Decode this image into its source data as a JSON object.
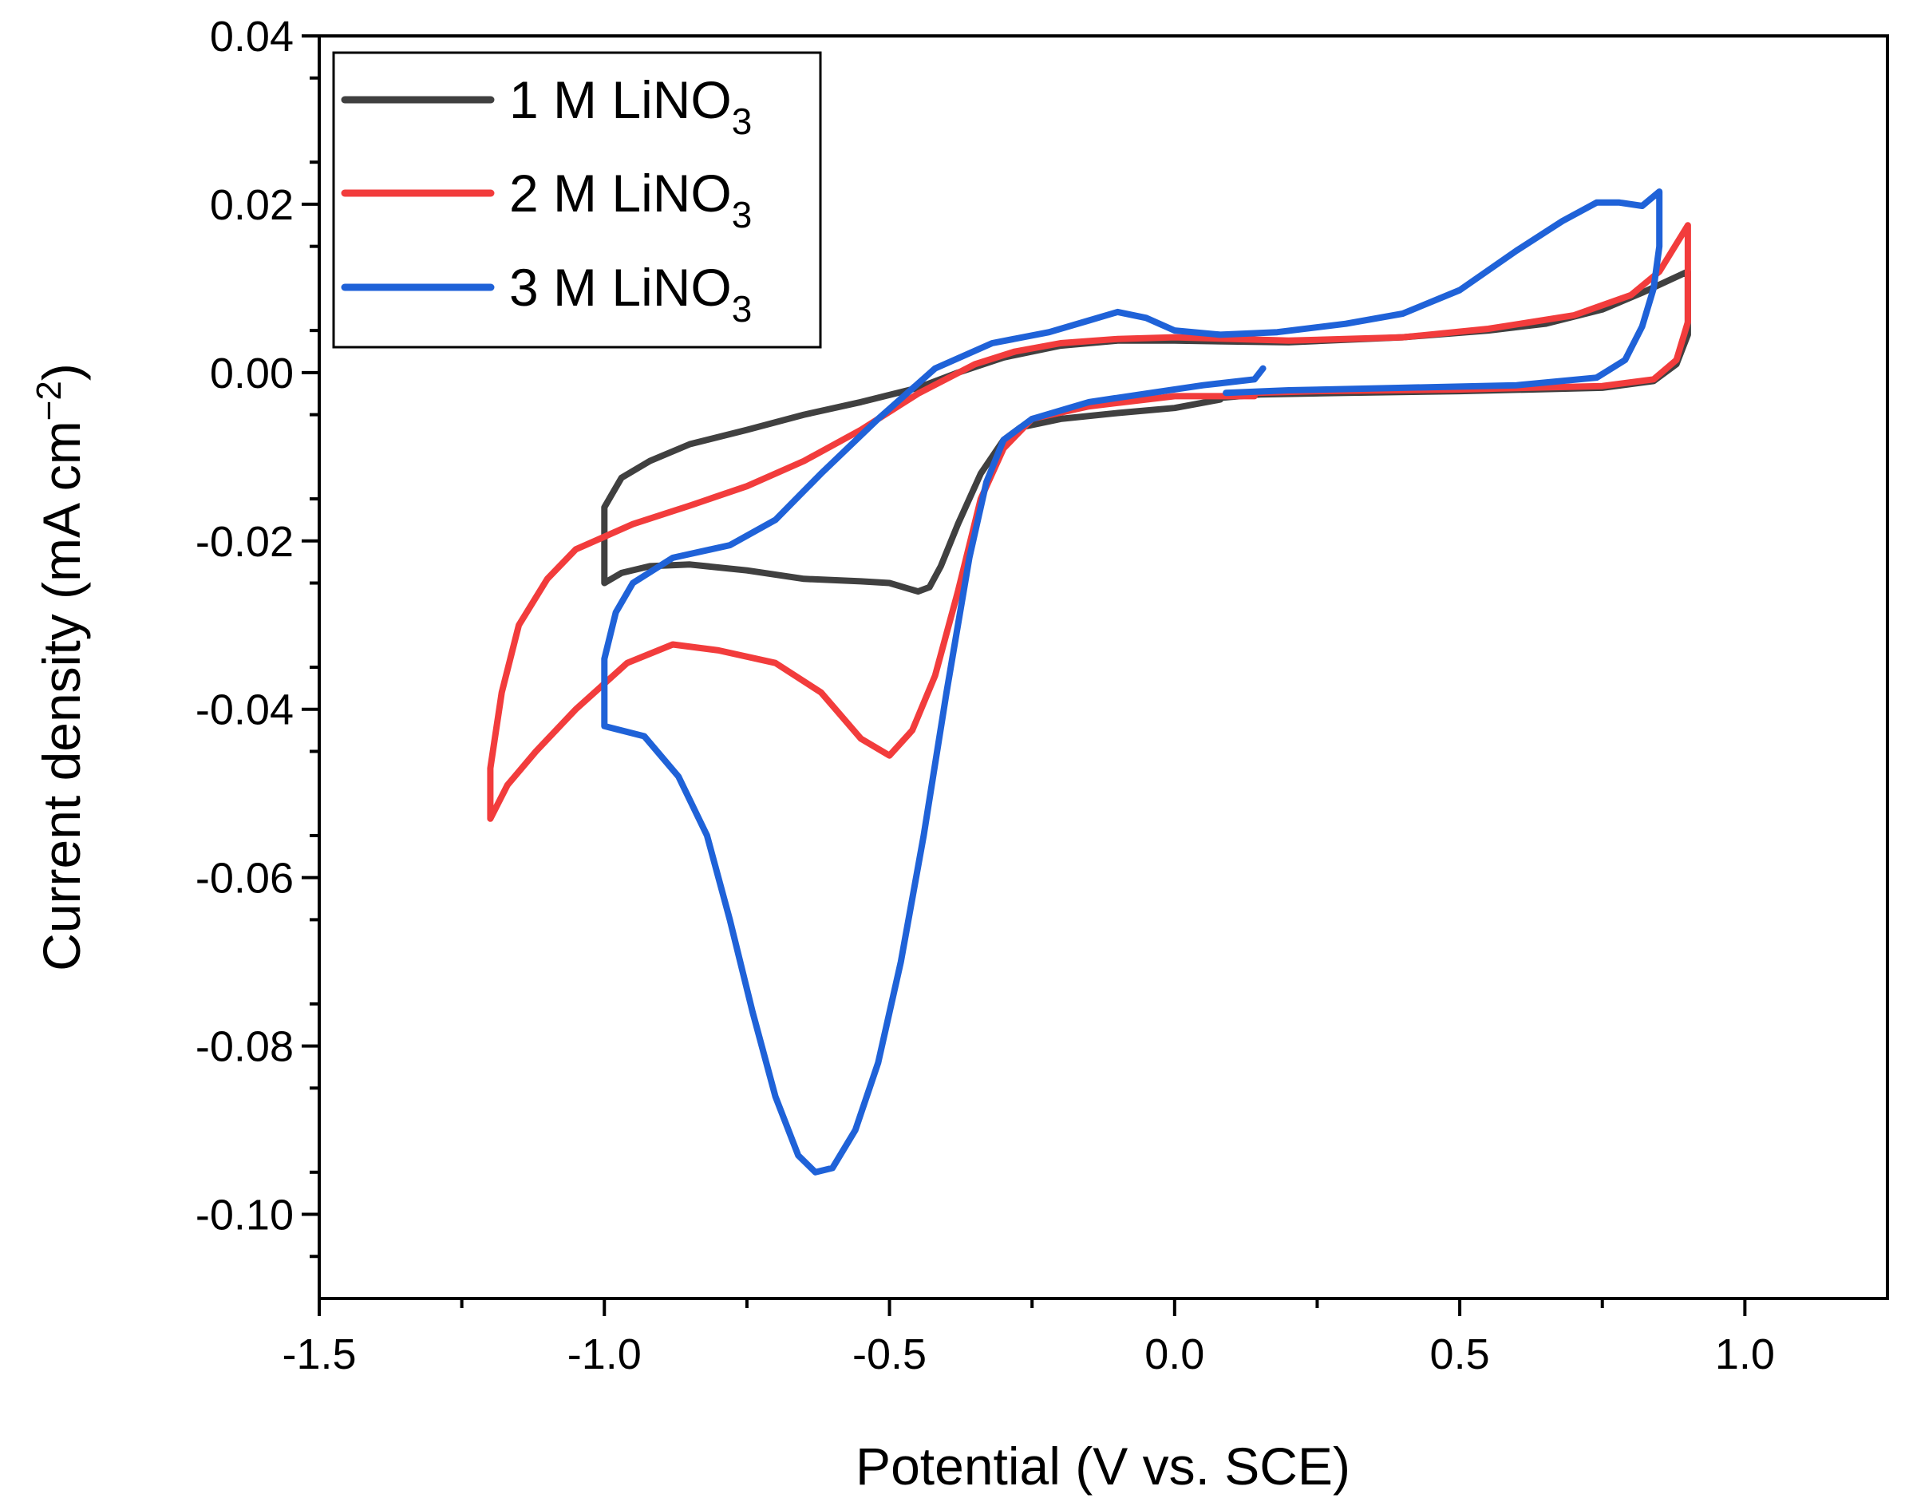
{
  "chart_data": {
    "type": "line",
    "title": "",
    "xlabel": "Potential (V vs. SCE)",
    "ylabel": {
      "prefix": "Current density (mA cm",
      "sup": "−2",
      "suffix": ")"
    },
    "xlim": [
      -1.5,
      1.25
    ],
    "ylim": [
      -0.11,
      0.04
    ],
    "x_ticks": [
      -1.5,
      -1.0,
      -0.5,
      0.0,
      0.5,
      1.0
    ],
    "x_tick_labels": [
      "-1.5",
      "-1.0",
      "-0.5",
      "0.0",
      "0.5",
      "1.0"
    ],
    "y_ticks": [
      0.04,
      0.02,
      0.0,
      -0.02,
      -0.04,
      -0.06,
      -0.08,
      -0.1
    ],
    "y_tick_labels": [
      "0.04",
      "0.02",
      "0.00",
      "-0.02",
      "-0.04",
      "-0.06",
      "-0.08",
      "-0.10"
    ],
    "grid": false,
    "legend_position": "top-left",
    "series": [
      {
        "name": "1 M LiNO3",
        "label_main": "1 M LiNO",
        "label_sub": "3",
        "color": "#404040",
        "points": [
          [
            0.08,
            -0.0032
          ],
          [
            0.0,
            -0.0042
          ],
          [
            -0.1,
            -0.0048
          ],
          [
            -0.2,
            -0.0055
          ],
          [
            -0.27,
            -0.0065
          ],
          [
            -0.3,
            -0.008
          ],
          [
            -0.34,
            -0.012
          ],
          [
            -0.38,
            -0.018
          ],
          [
            -0.41,
            -0.023
          ],
          [
            -0.43,
            -0.0255
          ],
          [
            -0.45,
            -0.026
          ],
          [
            -0.5,
            -0.025
          ],
          [
            -0.55,
            -0.0248
          ],
          [
            -0.65,
            -0.0245
          ],
          [
            -0.75,
            -0.0235
          ],
          [
            -0.85,
            -0.0228
          ],
          [
            -0.92,
            -0.023
          ],
          [
            -0.97,
            -0.0238
          ],
          [
            -1.0,
            -0.025
          ],
          [
            -1.0,
            -0.016
          ],
          [
            -0.97,
            -0.0125
          ],
          [
            -0.92,
            -0.0105
          ],
          [
            -0.85,
            -0.0085
          ],
          [
            -0.75,
            -0.0068
          ],
          [
            -0.65,
            -0.005
          ],
          [
            -0.55,
            -0.0035
          ],
          [
            -0.45,
            -0.0018
          ],
          [
            -0.38,
            0.0
          ],
          [
            -0.3,
            0.0018
          ],
          [
            -0.2,
            0.0032
          ],
          [
            -0.1,
            0.0038
          ],
          [
            0.0,
            0.0038
          ],
          [
            0.2,
            0.0036
          ],
          [
            0.4,
            0.0042
          ],
          [
            0.55,
            0.005
          ],
          [
            0.65,
            0.0058
          ],
          [
            0.75,
            0.0075
          ],
          [
            0.82,
            0.0095
          ],
          [
            0.9,
            0.012
          ],
          [
            0.9,
            0.0045
          ],
          [
            0.88,
            0.001
          ],
          [
            0.84,
            -0.001
          ],
          [
            0.75,
            -0.0018
          ],
          [
            0.5,
            -0.0022
          ],
          [
            0.3,
            -0.0024
          ],
          [
            0.15,
            -0.0026
          ],
          [
            0.08,
            -0.003
          ]
        ]
      },
      {
        "name": "2 M LiNO3",
        "label_main": "2 M LiNO",
        "label_sub": "3",
        "color": "#f23c3c",
        "points": [
          [
            0.14,
            -0.0028
          ],
          [
            0.0,
            -0.0028
          ],
          [
            -0.15,
            -0.004
          ],
          [
            -0.25,
            -0.0055
          ],
          [
            -0.3,
            -0.009
          ],
          [
            -0.34,
            -0.015
          ],
          [
            -0.38,
            -0.026
          ],
          [
            -0.42,
            -0.036
          ],
          [
            -0.46,
            -0.0425
          ],
          [
            -0.5,
            -0.0455
          ],
          [
            -0.55,
            -0.0435
          ],
          [
            -0.62,
            -0.038
          ],
          [
            -0.7,
            -0.0345
          ],
          [
            -0.8,
            -0.033
          ],
          [
            -0.88,
            -0.0323
          ],
          [
            -0.96,
            -0.0345
          ],
          [
            -1.05,
            -0.04
          ],
          [
            -1.12,
            -0.045
          ],
          [
            -1.17,
            -0.049
          ],
          [
            -1.2,
            -0.053
          ],
          [
            -1.2,
            -0.047
          ],
          [
            -1.18,
            -0.038
          ],
          [
            -1.15,
            -0.03
          ],
          [
            -1.1,
            -0.0245
          ],
          [
            -1.05,
            -0.021
          ],
          [
            -0.95,
            -0.018
          ],
          [
            -0.85,
            -0.0158
          ],
          [
            -0.75,
            -0.0135
          ],
          [
            -0.65,
            -0.0105
          ],
          [
            -0.55,
            -0.0068
          ],
          [
            -0.45,
            -0.0025
          ],
          [
            -0.35,
            0.001
          ],
          [
            -0.28,
            0.0025
          ],
          [
            -0.2,
            0.0035
          ],
          [
            -0.1,
            0.004
          ],
          [
            0.0,
            0.0042
          ],
          [
            0.2,
            0.0038
          ],
          [
            0.4,
            0.0042
          ],
          [
            0.55,
            0.0052
          ],
          [
            0.7,
            0.0068
          ],
          [
            0.8,
            0.0092
          ],
          [
            0.85,
            0.012
          ],
          [
            0.9,
            0.0175
          ],
          [
            0.9,
            0.006
          ],
          [
            0.88,
            0.0015
          ],
          [
            0.84,
            -0.0008
          ],
          [
            0.75,
            -0.0016
          ],
          [
            0.5,
            -0.002
          ],
          [
            0.25,
            -0.0022
          ],
          [
            0.14,
            -0.0024
          ]
        ]
      },
      {
        "name": "3 M LiNO3",
        "label_main": "3 M LiNO",
        "label_sub": "3",
        "color": "#1f62d8",
        "points": [
          [
            0.155,
            0.0005
          ],
          [
            0.14,
            -0.0008
          ],
          [
            0.05,
            -0.0015
          ],
          [
            -0.05,
            -0.0025
          ],
          [
            -0.15,
            -0.0035
          ],
          [
            -0.25,
            -0.0055
          ],
          [
            -0.3,
            -0.008
          ],
          [
            -0.33,
            -0.013
          ],
          [
            -0.36,
            -0.022
          ],
          [
            -0.4,
            -0.038
          ],
          [
            -0.44,
            -0.055
          ],
          [
            -0.48,
            -0.07
          ],
          [
            -0.52,
            -0.082
          ],
          [
            -0.56,
            -0.09
          ],
          [
            -0.6,
            -0.0945
          ],
          [
            -0.63,
            -0.095
          ],
          [
            -0.66,
            -0.093
          ],
          [
            -0.7,
            -0.086
          ],
          [
            -0.74,
            -0.076
          ],
          [
            -0.78,
            -0.065
          ],
          [
            -0.82,
            -0.055
          ],
          [
            -0.87,
            -0.048
          ],
          [
            -0.93,
            -0.0432
          ],
          [
            -1.0,
            -0.042
          ],
          [
            -1.0,
            -0.034
          ],
          [
            -0.98,
            -0.0285
          ],
          [
            -0.95,
            -0.025
          ],
          [
            -0.88,
            -0.022
          ],
          [
            -0.78,
            -0.0205
          ],
          [
            -0.7,
            -0.0175
          ],
          [
            -0.62,
            -0.012
          ],
          [
            -0.52,
            -0.0055
          ],
          [
            -0.42,
            0.0005
          ],
          [
            -0.32,
            0.0035
          ],
          [
            -0.22,
            0.0048
          ],
          [
            -0.15,
            0.0062
          ],
          [
            -0.1,
            0.0072
          ],
          [
            -0.05,
            0.0065
          ],
          [
            0.0,
            0.005
          ],
          [
            0.08,
            0.0045
          ],
          [
            0.18,
            0.0048
          ],
          [
            0.3,
            0.0058
          ],
          [
            0.4,
            0.007
          ],
          [
            0.5,
            0.0098
          ],
          [
            0.6,
            0.0145
          ],
          [
            0.68,
            0.018
          ],
          [
            0.74,
            0.0202
          ],
          [
            0.78,
            0.0202
          ],
          [
            0.82,
            0.0198
          ],
          [
            0.85,
            0.0215
          ],
          [
            0.85,
            0.015
          ],
          [
            0.84,
            0.01
          ],
          [
            0.82,
            0.0055
          ],
          [
            0.79,
            0.0015
          ],
          [
            0.74,
            -0.0006
          ],
          [
            0.6,
            -0.0015
          ],
          [
            0.4,
            -0.0018
          ],
          [
            0.2,
            -0.0021
          ],
          [
            0.09,
            -0.0024
          ]
        ]
      }
    ]
  }
}
